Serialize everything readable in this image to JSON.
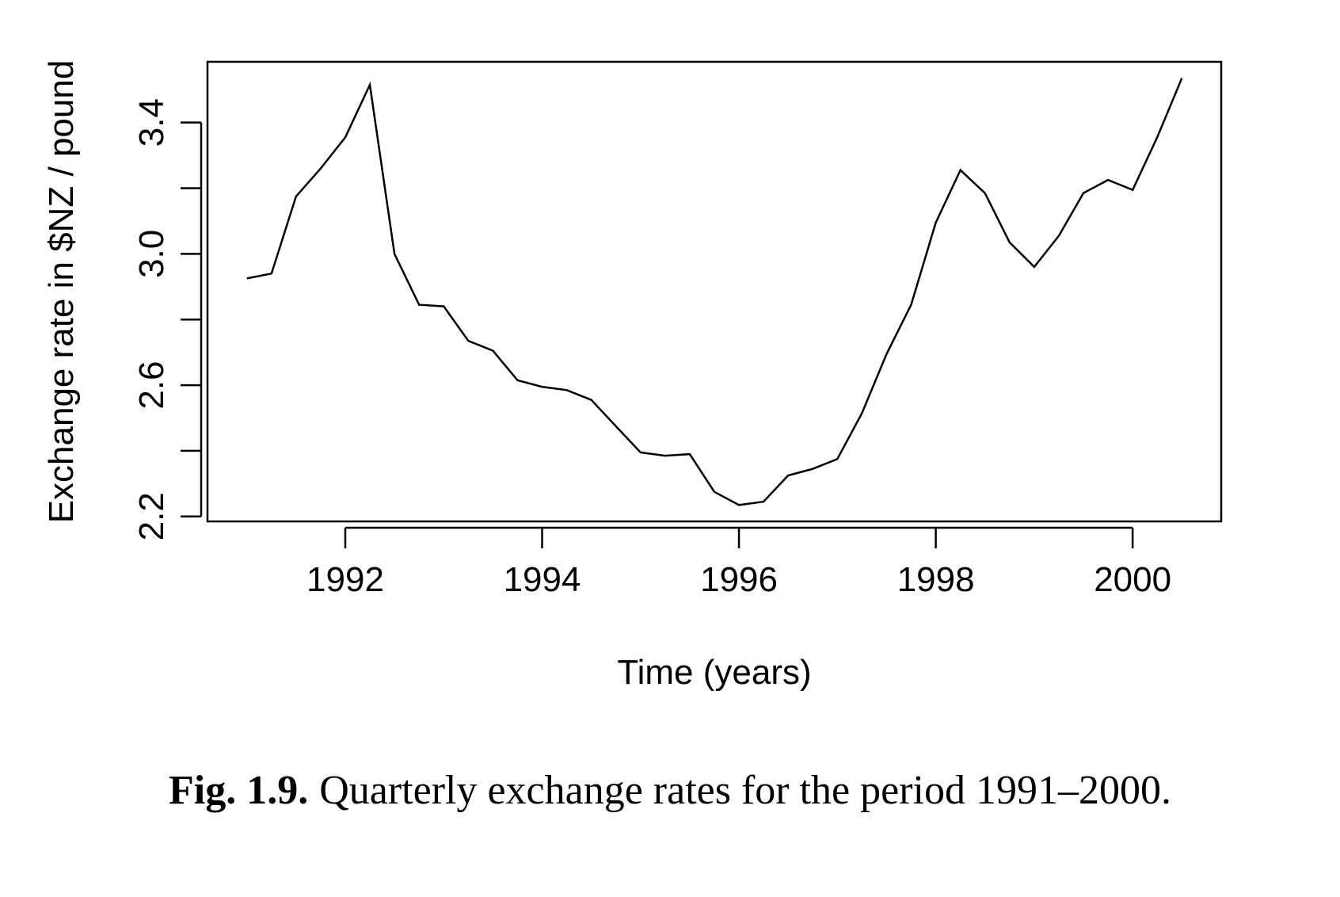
{
  "caption": {
    "label": "Fig. 1.9.",
    "text": "Quarterly exchange rates for the period 1991–2000."
  },
  "chart_data": {
    "type": "line",
    "title": "",
    "xlabel": "Time (years)",
    "ylabel": "Exchange rate in $NZ / pound",
    "xlim": [
      1990.6,
      2000.9
    ],
    "ylim": [
      2.185,
      3.585
    ],
    "xticks": [
      1992,
      1994,
      1996,
      1998,
      2000
    ],
    "yticks": [
      2.2,
      2.4,
      2.6,
      2.8,
      3.0,
      3.2,
      3.4
    ],
    "yticklabels": [
      "2.2",
      "",
      "2.6",
      "",
      "3.0",
      "",
      "3.4"
    ],
    "grid": false,
    "legend": "none",
    "series": [
      {
        "x": [
          1991.0,
          1991.25,
          1991.5,
          1991.75,
          1992.0,
          1992.25,
          1992.5,
          1992.75,
          1993.0,
          1993.25,
          1993.5,
          1993.75,
          1994.0,
          1994.25,
          1994.5,
          1994.75,
          1995.0,
          1995.25,
          1995.5,
          1995.75,
          1996.0,
          1996.25,
          1996.5,
          1996.75,
          1997.0,
          1997.25,
          1997.5,
          1997.75,
          1998.0,
          1998.25,
          1998.5,
          1998.75,
          1999.0,
          1999.25,
          1999.5,
          1999.75,
          2000.0,
          2000.25,
          2000.5
        ],
        "values": [
          2.925,
          2.94,
          3.175,
          3.26,
          3.355,
          3.515,
          3.0,
          2.845,
          2.84,
          2.735,
          2.705,
          2.615,
          2.595,
          2.585,
          2.555,
          2.475,
          2.395,
          2.385,
          2.39,
          2.275,
          2.235,
          2.245,
          2.325,
          2.345,
          2.375,
          2.515,
          2.695,
          2.845,
          3.095,
          3.255,
          3.185,
          3.035,
          2.96,
          3.055,
          3.185,
          3.225,
          3.195,
          3.355,
          3.535
        ],
        "color": "#000000"
      }
    ]
  }
}
